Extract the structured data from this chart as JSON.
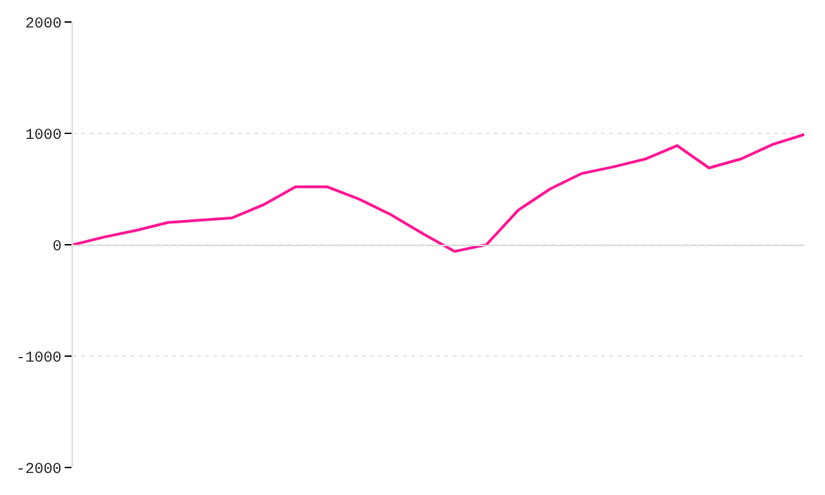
{
  "chart_data": {
    "type": "line",
    "categories": [
      null,
      null,
      null,
      null,
      null,
      null,
      null,
      null,
      null,
      null,
      null,
      null,
      null,
      null,
      null,
      null,
      null,
      null,
      null,
      null,
      null,
      null,
      null,
      null
    ],
    "series": [
      {
        "color": "#ff1493",
        "values": [
          0,
          70,
          130,
          200,
          220,
          240,
          360,
          520,
          520,
          410,
          270,
          100,
          -60,
          0,
          310,
          500,
          640,
          700,
          770,
          890,
          690,
          770,
          900,
          990
        ]
      }
    ],
    "ylim": [
      -2000,
      2000
    ],
    "yticks": [
      -2000,
      -1000,
      0,
      1000,
      2000
    ],
    "tick_labels": "y",
    "grid": "y",
    "marker": "none",
    "line_style": "solid"
  }
}
